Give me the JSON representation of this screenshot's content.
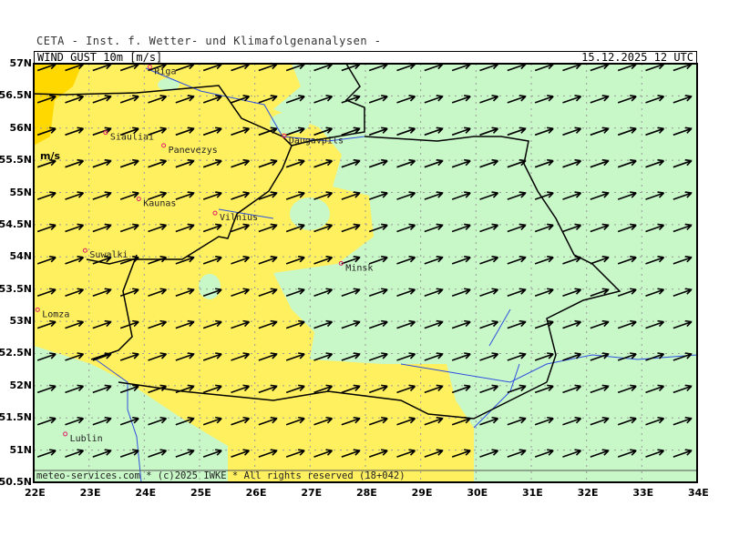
{
  "header": {
    "institute": "CETA - Inst. f. Wetter- und Klimafolgenanalysen -",
    "parameter": "WIND_GUST_10m_[m/s]",
    "valid_time": "15.12.2025 12 UTC"
  },
  "legend_unit": "m/s",
  "footer": "meteo-services.com * (c)2025 IWKE * All rights reserved (18+042)",
  "lat_labels": [
    "57N",
    "56.5N",
    "56N",
    "55.5N",
    "55N",
    "54.5N",
    "54N",
    "53.5N",
    "53N",
    "52.5N",
    "52N",
    "51.5N",
    "51N",
    "50.5N"
  ],
  "lon_labels": [
    "22E",
    "23E",
    "24E",
    "25E",
    "26E",
    "27E",
    "28E",
    "29E",
    "30E",
    "31E",
    "32E",
    "33E",
    "34E"
  ],
  "colors": {
    "low": "#c8f7c8",
    "mid": "#fff060",
    "high": "#ffd800",
    "border": "#000000",
    "river": "#3050e0",
    "city": "#e0206a"
  },
  "cities": [
    {
      "name": "Riga",
      "lat": 56.95,
      "lon": 24.1
    },
    {
      "name": "Siauliai",
      "lat": 55.93,
      "lon": 23.3
    },
    {
      "name": "Panevezys",
      "lat": 55.73,
      "lon": 24.35
    },
    {
      "name": "Daugavpils",
      "lat": 55.88,
      "lon": 26.53
    },
    {
      "name": "Kaunas",
      "lat": 54.9,
      "lon": 23.9
    },
    {
      "name": "Vilnius",
      "lat": 54.68,
      "lon": 25.28
    },
    {
      "name": "Suwalki",
      "lat": 54.1,
      "lon": 22.93
    },
    {
      "name": "Minsk",
      "lat": 53.9,
      "lon": 27.56
    },
    {
      "name": "Lomza",
      "lat": 53.18,
      "lon": 22.07
    },
    {
      "name": "Lublin",
      "lat": 51.25,
      "lon": 22.57
    }
  ]
}
